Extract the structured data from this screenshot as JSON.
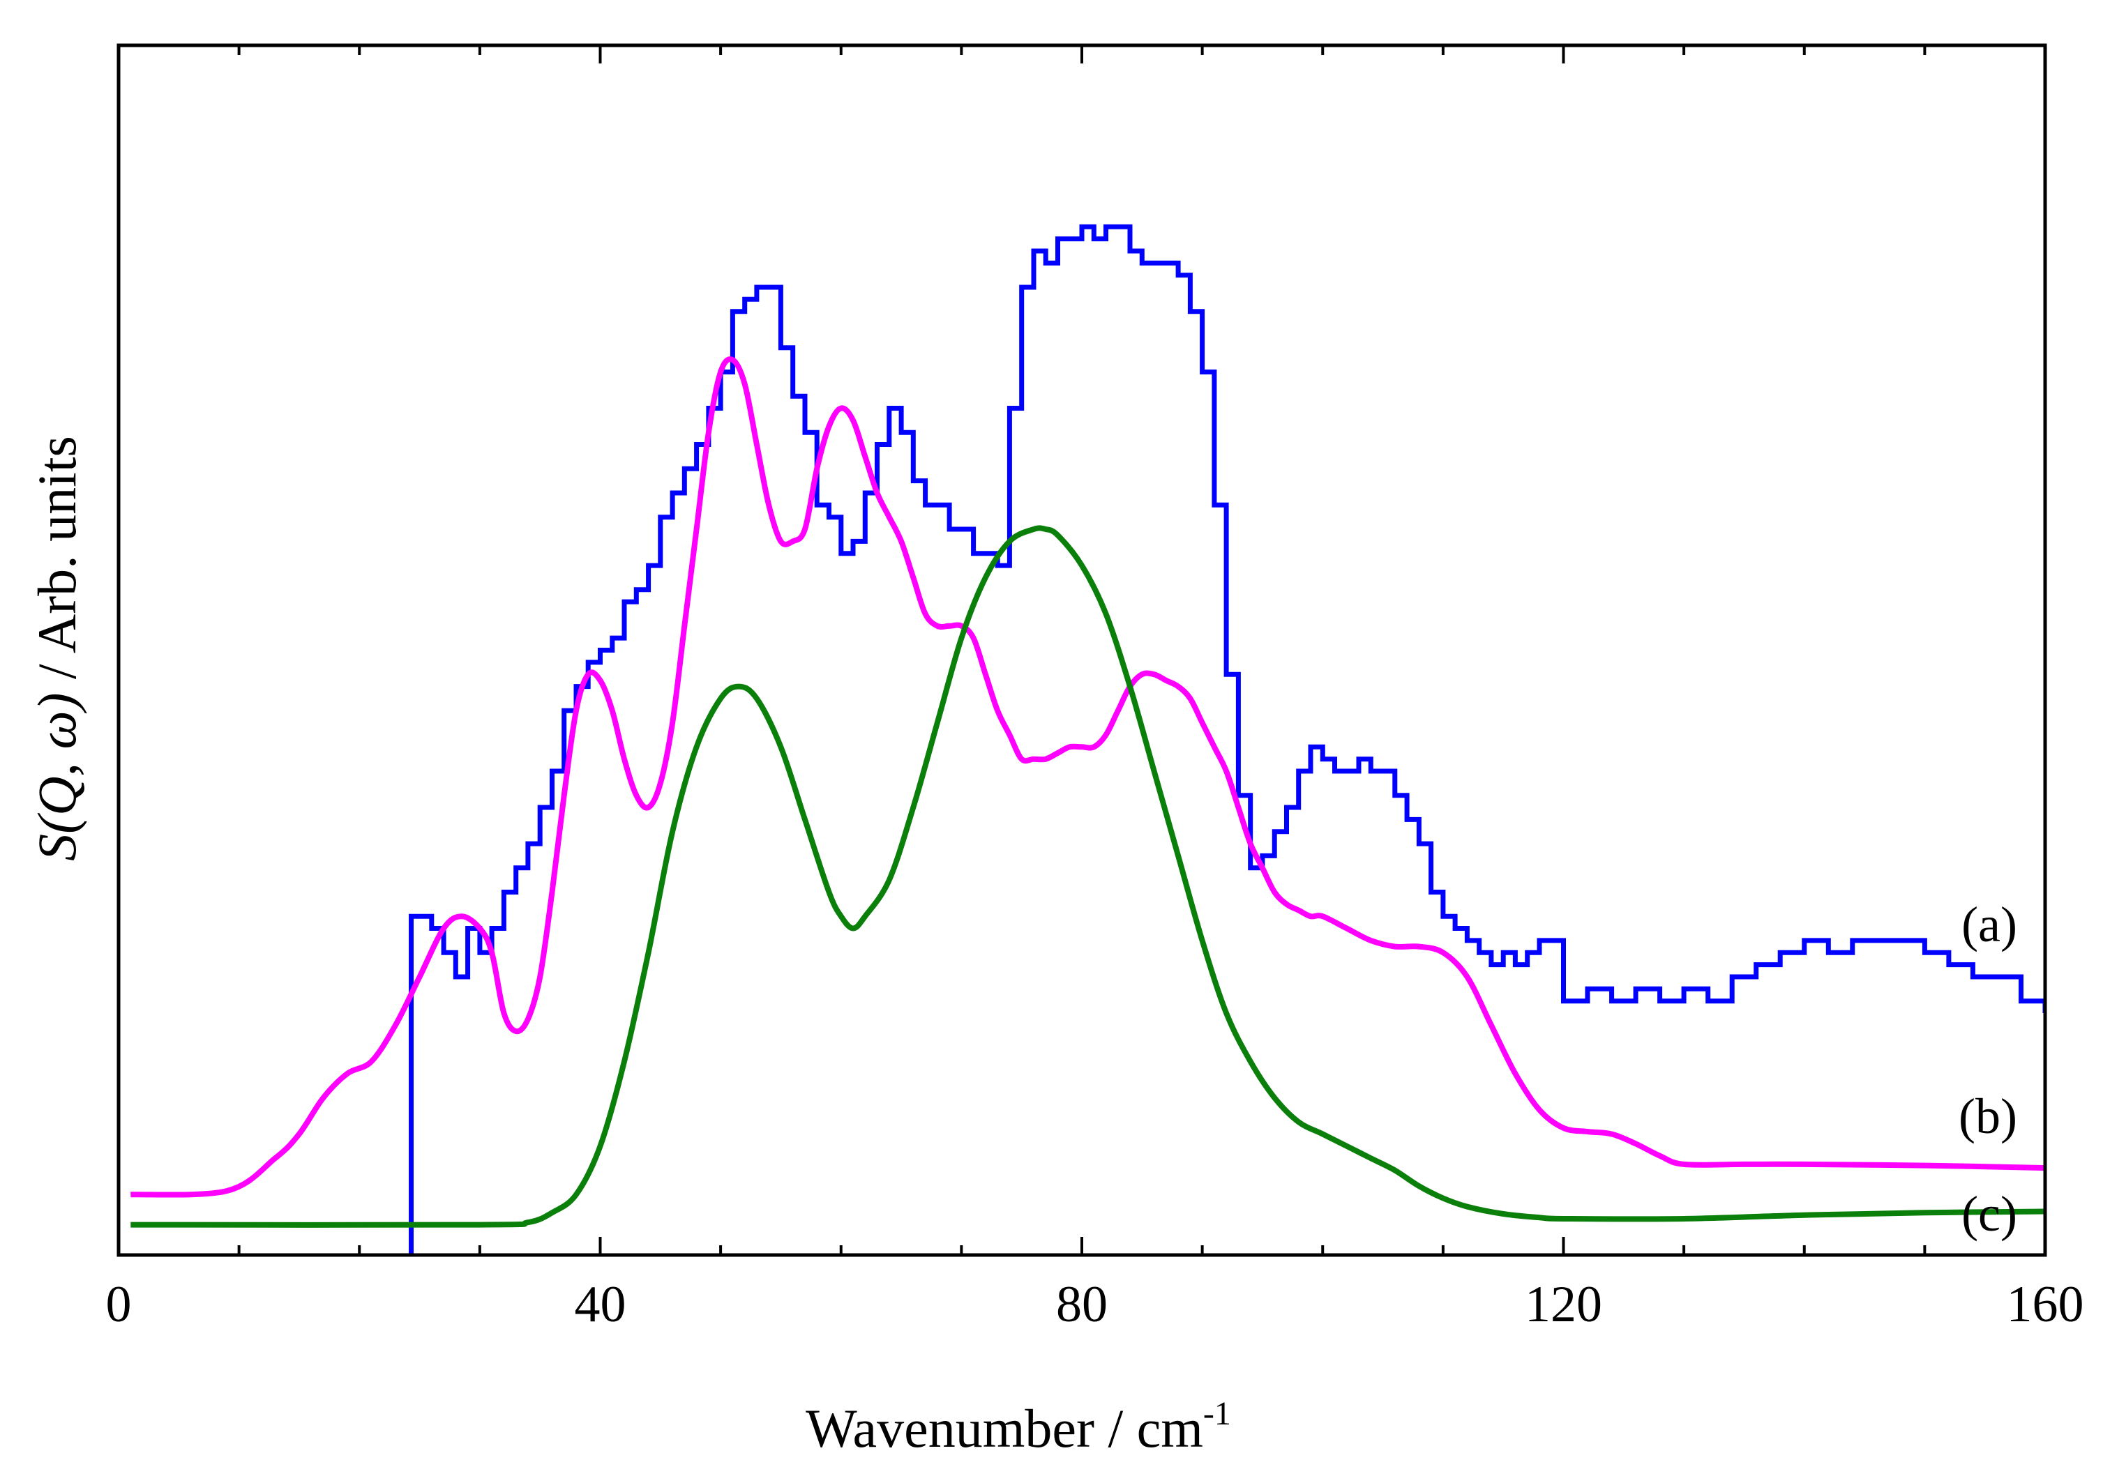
{
  "chart_data": {
    "type": "line",
    "title": "",
    "xlabel": "Wavenumber / cm",
    "xlabel_superscript": "-1",
    "ylabel_italic": "S(Q, ω)",
    "ylabel_rest": " / Arb. units",
    "xlim": [
      0,
      160
    ],
    "ylim": [
      0,
      100
    ],
    "x_ticks": [
      0,
      40,
      80,
      120,
      160
    ],
    "x_tick_labels": [
      "0",
      "40",
      "80",
      "120",
      "160"
    ],
    "y_ticks_shown": false,
    "grid": false,
    "series": [
      {
        "name": "(a)",
        "label": "(a)",
        "color": "#0000ff",
        "style": "step",
        "points": [
          [
            24.3,
            0
          ],
          [
            24.3,
            28
          ],
          [
            26,
            27
          ],
          [
            27,
            25
          ],
          [
            28,
            23
          ],
          [
            29,
            27
          ],
          [
            30,
            25
          ],
          [
            31,
            27
          ],
          [
            32,
            30
          ],
          [
            33,
            32
          ],
          [
            34,
            34
          ],
          [
            35,
            37
          ],
          [
            36,
            40
          ],
          [
            37,
            45
          ],
          [
            38,
            47
          ],
          [
            39,
            49
          ],
          [
            40,
            50
          ],
          [
            41,
            51
          ],
          [
            42,
            54
          ],
          [
            43,
            55
          ],
          [
            44,
            57
          ],
          [
            45,
            61
          ],
          [
            46,
            63
          ],
          [
            47,
            65
          ],
          [
            48,
            67
          ],
          [
            49,
            70
          ],
          [
            50,
            73
          ],
          [
            51,
            78
          ],
          [
            52,
            79
          ],
          [
            53,
            80
          ],
          [
            54,
            80
          ],
          [
            55,
            75
          ],
          [
            56,
            71
          ],
          [
            57,
            68
          ],
          [
            58,
            62
          ],
          [
            59,
            61
          ],
          [
            60,
            58
          ],
          [
            61,
            59
          ],
          [
            62,
            63
          ],
          [
            63,
            67
          ],
          [
            64,
            70
          ],
          [
            65,
            68
          ],
          [
            66,
            64
          ],
          [
            67,
            62
          ],
          [
            68,
            62
          ],
          [
            69,
            60
          ],
          [
            70,
            60
          ],
          [
            71,
            58
          ],
          [
            72,
            58
          ],
          [
            73,
            57
          ],
          [
            74,
            70
          ],
          [
            75,
            80
          ],
          [
            76,
            83
          ],
          [
            77,
            82
          ],
          [
            78,
            84
          ],
          [
            79,
            84
          ],
          [
            80,
            85
          ],
          [
            81,
            84
          ],
          [
            82,
            85
          ],
          [
            83,
            85
          ],
          [
            84,
            83
          ],
          [
            85,
            82
          ],
          [
            86,
            82
          ],
          [
            87,
            82
          ],
          [
            88,
            81
          ],
          [
            89,
            78
          ],
          [
            90,
            73
          ],
          [
            91,
            62
          ],
          [
            92,
            48
          ],
          [
            93,
            38
          ],
          [
            94,
            32
          ],
          [
            95,
            33
          ],
          [
            96,
            35
          ],
          [
            97,
            37
          ],
          [
            98,
            40
          ],
          [
            99,
            42
          ],
          [
            100,
            41
          ],
          [
            101,
            40
          ],
          [
            102,
            40
          ],
          [
            103,
            41
          ],
          [
            104,
            40
          ],
          [
            105,
            40
          ],
          [
            106,
            38
          ],
          [
            107,
            36
          ],
          [
            108,
            34
          ],
          [
            109,
            30
          ],
          [
            110,
            28
          ],
          [
            111,
            27
          ],
          [
            112,
            26
          ],
          [
            113,
            25
          ],
          [
            114,
            24
          ],
          [
            115,
            25
          ],
          [
            116,
            24
          ],
          [
            117,
            25
          ],
          [
            118,
            26
          ],
          [
            119,
            26
          ],
          [
            120,
            21
          ],
          [
            122,
            22
          ],
          [
            124,
            21
          ],
          [
            126,
            22
          ],
          [
            128,
            21
          ],
          [
            130,
            22
          ],
          [
            132,
            21
          ],
          [
            134,
            23
          ],
          [
            136,
            24
          ],
          [
            138,
            25
          ],
          [
            140,
            26
          ],
          [
            142,
            25
          ],
          [
            144,
            26
          ],
          [
            146,
            26
          ],
          [
            148,
            26
          ],
          [
            150,
            25
          ],
          [
            152,
            24
          ],
          [
            154,
            23
          ],
          [
            156,
            23
          ],
          [
            158,
            21
          ],
          [
            160,
            20
          ]
        ]
      },
      {
        "name": "(b)",
        "label": "(b)",
        "color": "#ff00ff",
        "style": "smooth",
        "points": [
          [
            1,
            5
          ],
          [
            9,
            5.3
          ],
          [
            13,
            8
          ],
          [
            15,
            10
          ],
          [
            17,
            13
          ],
          [
            19,
            15
          ],
          [
            21,
            16
          ],
          [
            23,
            19
          ],
          [
            25,
            23
          ],
          [
            27,
            27
          ],
          [
            28.5,
            28
          ],
          [
            30,
            27
          ],
          [
            31,
            25
          ],
          [
            32,
            20
          ],
          [
            33,
            18.5
          ],
          [
            34,
            19.5
          ],
          [
            35,
            23
          ],
          [
            36,
            30
          ],
          [
            37,
            38
          ],
          [
            38,
            45
          ],
          [
            39,
            48
          ],
          [
            40,
            47.5
          ],
          [
            41,
            45
          ],
          [
            42,
            41
          ],
          [
            43,
            38
          ],
          [
            44,
            37
          ],
          [
            45,
            39
          ],
          [
            46,
            44
          ],
          [
            47,
            52
          ],
          [
            48,
            60
          ],
          [
            49,
            68
          ],
          [
            50,
            73
          ],
          [
            51,
            74
          ],
          [
            52,
            72
          ],
          [
            53,
            67
          ],
          [
            54,
            62
          ],
          [
            55,
            59
          ],
          [
            56,
            59
          ],
          [
            57,
            60
          ],
          [
            58,
            65
          ],
          [
            59,
            68.5
          ],
          [
            60,
            70
          ],
          [
            61,
            69
          ],
          [
            62,
            66
          ],
          [
            63,
            63
          ],
          [
            64,
            61
          ],
          [
            65,
            59
          ],
          [
            66,
            56
          ],
          [
            67,
            53
          ],
          [
            68,
            52
          ],
          [
            69,
            52
          ],
          [
            70,
            52
          ],
          [
            71,
            51
          ],
          [
            72,
            48
          ],
          [
            73,
            45
          ],
          [
            74,
            43
          ],
          [
            75,
            41
          ],
          [
            76,
            41
          ],
          [
            77,
            41
          ],
          [
            78,
            41.5
          ],
          [
            79,
            42
          ],
          [
            80,
            42
          ],
          [
            81,
            42
          ],
          [
            82,
            43
          ],
          [
            83,
            45
          ],
          [
            84,
            47
          ],
          [
            85,
            48
          ],
          [
            86,
            48
          ],
          [
            87,
            47.5
          ],
          [
            88,
            47
          ],
          [
            89,
            46
          ],
          [
            90,
            44
          ],
          [
            91,
            42
          ],
          [
            92,
            40
          ],
          [
            93,
            37
          ],
          [
            94,
            34
          ],
          [
            95,
            32
          ],
          [
            96,
            30
          ],
          [
            97,
            29
          ],
          [
            98,
            28.5
          ],
          [
            99,
            28
          ],
          [
            100,
            28
          ],
          [
            102,
            27
          ],
          [
            104,
            26
          ],
          [
            106,
            25.5
          ],
          [
            108,
            25.5
          ],
          [
            110,
            25
          ],
          [
            112,
            23
          ],
          [
            114,
            19
          ],
          [
            116,
            15
          ],
          [
            118,
            12
          ],
          [
            120,
            10.5
          ],
          [
            122,
            10.2
          ],
          [
            124,
            10
          ],
          [
            126,
            9.2
          ],
          [
            128,
            8.2
          ],
          [
            130,
            7.5
          ],
          [
            135,
            7.5
          ],
          [
            140,
            7.5
          ],
          [
            150,
            7.4
          ],
          [
            160,
            7.2
          ]
        ]
      },
      {
        "name": "(c)",
        "label": "(c)",
        "color": "#0a7f0a",
        "style": "smooth",
        "points": [
          [
            1,
            2.5
          ],
          [
            30,
            2.5
          ],
          [
            34,
            2.7
          ],
          [
            36,
            3.5
          ],
          [
            38,
            5
          ],
          [
            40,
            9
          ],
          [
            42,
            16
          ],
          [
            44,
            25
          ],
          [
            46,
            35
          ],
          [
            48,
            42
          ],
          [
            50,
            46
          ],
          [
            51.5,
            47
          ],
          [
            53,
            46
          ],
          [
            55,
            42
          ],
          [
            57,
            36
          ],
          [
            59,
            30
          ],
          [
            60,
            28
          ],
          [
            61,
            27
          ],
          [
            62,
            28
          ],
          [
            64,
            31
          ],
          [
            66,
            37
          ],
          [
            68,
            44
          ],
          [
            70,
            51
          ],
          [
            72,
            56
          ],
          [
            74,
            59
          ],
          [
            76,
            60
          ],
          [
            77,
            60
          ],
          [
            78,
            59.5
          ],
          [
            80,
            57
          ],
          [
            82,
            53
          ],
          [
            84,
            47
          ],
          [
            86,
            40
          ],
          [
            88,
            33
          ],
          [
            90,
            26
          ],
          [
            92,
            20
          ],
          [
            94,
            16
          ],
          [
            96,
            13
          ],
          [
            98,
            11
          ],
          [
            100,
            10
          ],
          [
            102,
            9
          ],
          [
            104,
            8
          ],
          [
            106,
            7
          ],
          [
            108,
            5.7
          ],
          [
            110,
            4.7
          ],
          [
            112,
            4
          ],
          [
            115,
            3.4
          ],
          [
            118,
            3.1
          ],
          [
            120,
            3
          ],
          [
            130,
            3
          ],
          [
            140,
            3.3
          ],
          [
            150,
            3.5
          ],
          [
            160,
            3.6
          ]
        ]
      }
    ]
  }
}
